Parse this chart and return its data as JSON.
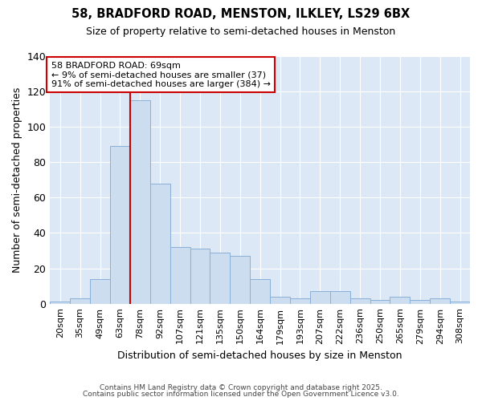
{
  "title1": "58, BRADFORD ROAD, MENSTON, ILKLEY, LS29 6BX",
  "title2": "Size of property relative to semi-detached houses in Menston",
  "xlabel": "Distribution of semi-detached houses by size in Menston",
  "ylabel": "Number of semi-detached properties",
  "bar_labels": [
    "20sqm",
    "35sqm",
    "49sqm",
    "63sqm",
    "78sqm",
    "92sqm",
    "107sqm",
    "121sqm",
    "135sqm",
    "150sqm",
    "164sqm",
    "179sqm",
    "193sqm",
    "207sqm",
    "222sqm",
    "236sqm",
    "250sqm",
    "265sqm",
    "279sqm",
    "294sqm",
    "308sqm"
  ],
  "bar_values": [
    1,
    3,
    14,
    89,
    115,
    68,
    32,
    31,
    29,
    27,
    14,
    4,
    3,
    7,
    7,
    3,
    2,
    4,
    2,
    3,
    1
  ],
  "bar_color": "#ccddf0",
  "bar_edge_color": "#8ab0d8",
  "vline_color": "#cc0000",
  "vline_x": 3.5,
  "annotation_box_color": "#ffffff",
  "annotation_box_edge": "#cc0000",
  "ann_line1": "58 BRADFORD ROAD: 69sqm",
  "ann_line2": "← 9% of semi-detached houses are smaller (37)",
  "ann_line3": "91% of semi-detached houses are larger (384) →",
  "ylim": [
    0,
    140
  ],
  "yticks": [
    0,
    20,
    40,
    60,
    80,
    100,
    120,
    140
  ],
  "plot_bg_color": "#dce8f5",
  "fig_bg_color": "#ffffff",
  "grid_color": "#ffffff",
  "footer1": "Contains HM Land Registry data © Crown copyright and database right 2025.",
  "footer2": "Contains public sector information licensed under the Open Government Licence v3.0."
}
